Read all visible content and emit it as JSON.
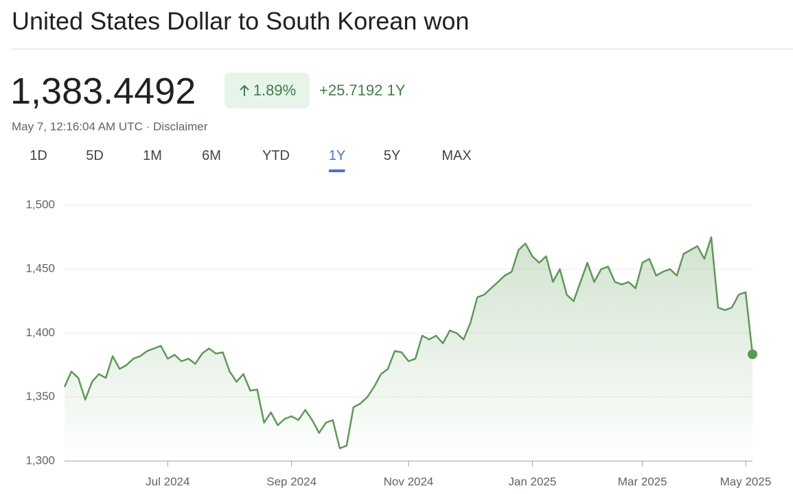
{
  "header": {
    "title": "United States Dollar to South Korean won"
  },
  "quote": {
    "price": "1,383.4492",
    "change_percent": "1.89%",
    "change_abs": "+25.7192",
    "change_period": "1Y",
    "timestamp": "May 7, 12:16:04 AM UTC",
    "separator": "·",
    "disclaimer": "Disclaimer"
  },
  "ranges": {
    "items": [
      "1D",
      "5D",
      "1M",
      "6M",
      "YTD",
      "1Y",
      "5Y",
      "MAX"
    ],
    "selected_index": 5
  },
  "chart_data": {
    "type": "area",
    "color": "#5b9a54",
    "grid": true,
    "categories": [
      null,
      null,
      null,
      null,
      null,
      null,
      null,
      null,
      null,
      null,
      null,
      null,
      null,
      null,
      null,
      "Jul 2024",
      null,
      null,
      null,
      null,
      null,
      null,
      null,
      null,
      null,
      null,
      null,
      null,
      null,
      null,
      null,
      null,
      null,
      "Sep 2024",
      null,
      null,
      null,
      null,
      null,
      null,
      null,
      null,
      null,
      null,
      null,
      null,
      null,
      null,
      null,
      null,
      "Nov 2024",
      null,
      null,
      null,
      null,
      null,
      null,
      null,
      null,
      null,
      null,
      null,
      null,
      null,
      null,
      null,
      null,
      null,
      "Jan 2025",
      null,
      null,
      null,
      null,
      null,
      null,
      null,
      null,
      null,
      null,
      null,
      null,
      null,
      null,
      null,
      "Mar 2025",
      null,
      null,
      null,
      null,
      null,
      null,
      null,
      null,
      null,
      null,
      null,
      null,
      null,
      null,
      "May 2025",
      null
    ],
    "values": [
      1358,
      1370,
      1365,
      1348,
      1362,
      1368,
      1365,
      1382,
      1372,
      1375,
      1380,
      1382,
      1386,
      1388,
      1390,
      1380,
      1383,
      1378,
      1380,
      1376,
      1384,
      1388,
      1384,
      1385,
      1370,
      1362,
      1368,
      1355,
      1356,
      1330,
      1338,
      1328,
      1333,
      1335,
      1332,
      1340,
      1332,
      1322,
      1330,
      1332,
      1310,
      1312,
      1342,
      1345,
      1350,
      1358,
      1368,
      1372,
      1386,
      1385,
      1378,
      1380,
      1398,
      1395,
      1398,
      1392,
      1402,
      1400,
      1395,
      1408,
      1428,
      1430,
      1435,
      1440,
      1445,
      1448,
      1465,
      1470,
      1460,
      1455,
      1460,
      1440,
      1450,
      1430,
      1425,
      1440,
      1455,
      1440,
      1450,
      1452,
      1440,
      1438,
      1440,
      1435,
      1455,
      1458,
      1445,
      1448,
      1450,
      1445,
      1462,
      1465,
      1468,
      1458,
      1475,
      1420,
      1418,
      1420,
      1430,
      1432,
      1383.4492
    ],
    "ylim": [
      1300,
      1500
    ],
    "yticks": [
      {
        "value": 1300,
        "label": "1,300"
      },
      {
        "value": 1350,
        "label": "1,350"
      },
      {
        "value": 1400,
        "label": "1,400"
      },
      {
        "value": 1450,
        "label": "1,450"
      },
      {
        "value": 1500,
        "label": "1,500"
      }
    ]
  }
}
